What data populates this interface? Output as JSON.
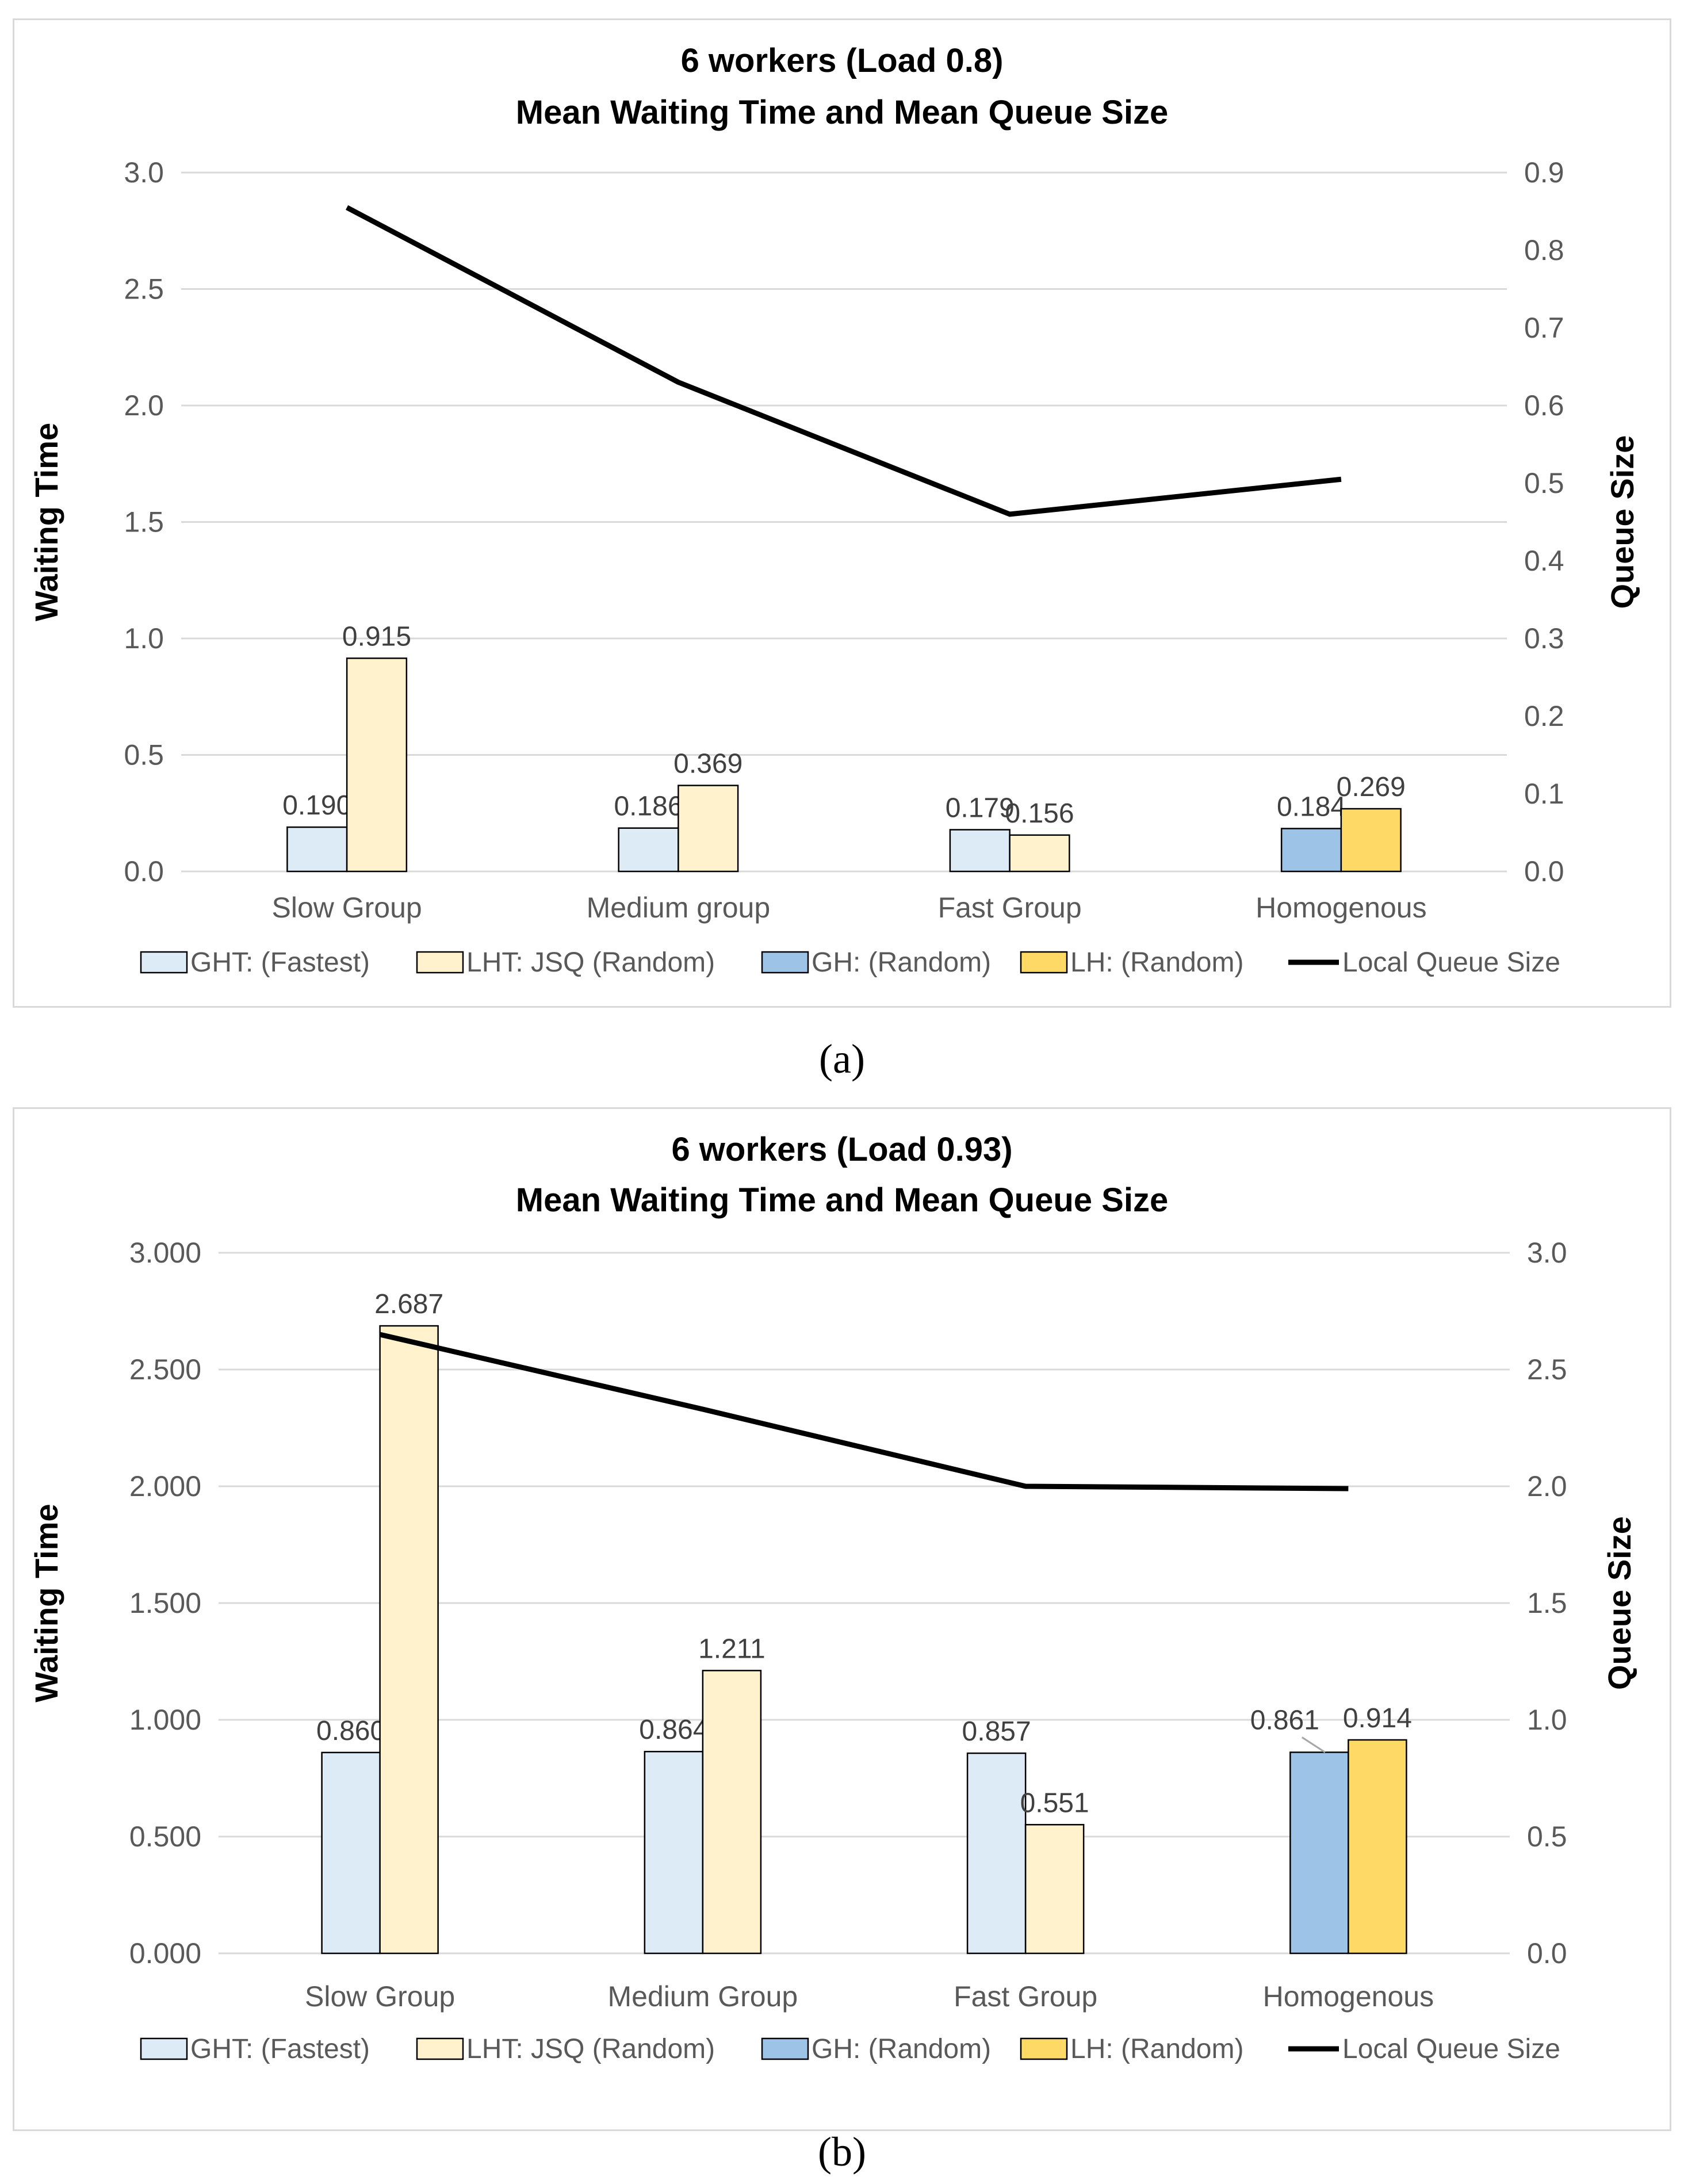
{
  "colors": {
    "ght": "#ddebf7",
    "lht": "#fff2cc",
    "gh": "#9dc3e6",
    "lh": "#ffd966",
    "line": "#000000",
    "bar_border": "#000000",
    "grid": "#d9d9d9",
    "axis_text": "#595959"
  },
  "chart_data": [
    {
      "type": "bar",
      "panel_label": "(a)",
      "title": "6 workers (Load 0.8)",
      "subtitle": "Mean Waiting Time and Mean Queue Size",
      "ylabel": "Waiting Time",
      "y2label": "Queue Size",
      "ylim": [
        0,
        3.0
      ],
      "y2lim": [
        0,
        0.9
      ],
      "yticks": [
        "0.0",
        "0.5",
        "1.0",
        "1.5",
        "2.0",
        "2.5",
        "3.0"
      ],
      "y2ticks": [
        "0.0",
        "0.1",
        "0.2",
        "0.3",
        "0.4",
        "0.5",
        "0.6",
        "0.7",
        "0.8",
        "0.9"
      ],
      "categories": [
        "Slow Group",
        "Medium group",
        "Fast Group",
        "Homogenous"
      ],
      "series": [
        {
          "name": "GHT: (Fastest)",
          "color_key": "ght",
          "values": [
            0.19,
            0.186,
            0.179,
            null
          ],
          "labels": [
            "0.190",
            "0.186",
            "0.179",
            null
          ]
        },
        {
          "name": "LHT: JSQ (Random)",
          "color_key": "lht",
          "values": [
            0.915,
            0.369,
            0.156,
            null
          ],
          "labels": [
            "0.915",
            "0.369",
            "0.156",
            null
          ]
        },
        {
          "name": "GH: (Random)",
          "color_key": "gh",
          "values": [
            null,
            null,
            null,
            0.184
          ],
          "labels": [
            null,
            null,
            null,
            "0.184"
          ]
        },
        {
          "name": "LH: (Random)",
          "color_key": "lh",
          "values": [
            null,
            null,
            null,
            0.269
          ],
          "labels": [
            null,
            null,
            null,
            "0.269"
          ]
        }
      ],
      "line_series": {
        "name": "Local Queue Size",
        "axis": "secondary",
        "values": [
          0.855,
          0.63,
          0.46,
          0.505
        ]
      },
      "legend": [
        "GHT: (Fastest)",
        "LHT: JSQ (Random)",
        "GH: (Random)",
        "LH: (Random)",
        "Local Queue Size"
      ],
      "grid": true,
      "legend_position": "bottom"
    },
    {
      "type": "bar",
      "panel_label": "(b)",
      "title": "6 workers (Load 0.93)",
      "subtitle": "Mean Waiting Time and Mean Queue Size",
      "ylabel": "Waiting Time",
      "y2label": "Queue Size",
      "ylim": [
        0,
        3.0
      ],
      "y2lim": [
        0,
        3.0
      ],
      "yticks": [
        "0.000",
        "0.500",
        "1.000",
        "1.500",
        "2.000",
        "2.500",
        "3.000"
      ],
      "y2ticks": [
        "0.0",
        "0.5",
        "1.0",
        "1.5",
        "2.0",
        "2.5",
        "3.0"
      ],
      "categories": [
        "Slow Group",
        "Medium Group",
        "Fast Group",
        "Homogenous"
      ],
      "series": [
        {
          "name": "GHT: (Fastest)",
          "color_key": "ght",
          "values": [
            0.86,
            0.864,
            0.857,
            null
          ],
          "labels": [
            "0.860",
            "0.864",
            "0.857",
            null
          ]
        },
        {
          "name": "LHT: JSQ (Random)",
          "color_key": "lht",
          "values": [
            2.687,
            1.211,
            0.551,
            null
          ],
          "labels": [
            "2.687",
            "1.211",
            "0.551",
            null
          ]
        },
        {
          "name": "GH: (Random)",
          "color_key": "gh",
          "values": [
            null,
            null,
            null,
            0.861
          ],
          "labels": [
            null,
            null,
            null,
            "0.861"
          ]
        },
        {
          "name": "LH: (Random)",
          "color_key": "lh",
          "values": [
            null,
            null,
            null,
            0.914
          ],
          "labels": [
            null,
            null,
            null,
            "0.914"
          ]
        }
      ],
      "line_series": {
        "name": "Local Queue Size",
        "axis": "secondary",
        "values": [
          2.65,
          2.33,
          2.0,
          1.99
        ]
      },
      "legend": [
        "GHT: (Fastest)",
        "LHT: JSQ (Random)",
        "GH: (Random)",
        "LH: (Random)",
        "Local Queue Size"
      ],
      "grid": true,
      "legend_position": "bottom"
    }
  ]
}
